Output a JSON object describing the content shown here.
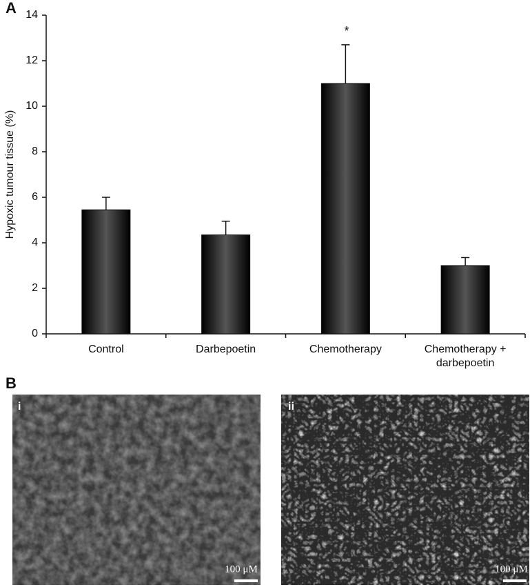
{
  "chart_data": {
    "type": "bar",
    "panel_label": "A",
    "y_label": "Hypoxic tumour tissue (%)",
    "categories": [
      "Control",
      "Darbepoetin",
      "Chemotherapy",
      "Chemotherapy + darbepoetin"
    ],
    "values": [
      5.45,
      4.35,
      11.0,
      3.0
    ],
    "errors": [
      0.55,
      0.6,
      1.7,
      0.35
    ],
    "color": "#111111",
    "annotation": "*",
    "ylim": [
      0,
      14
    ],
    "yticks": [
      0,
      2,
      4,
      6,
      8,
      10,
      12,
      14
    ],
    "grid": false
  },
  "images": {
    "panel_label": "B",
    "panels": [
      {
        "label": "i",
        "scale_bar": "100 μM"
      },
      {
        "label": "ii",
        "scale_bar": "100 μM"
      }
    ]
  }
}
